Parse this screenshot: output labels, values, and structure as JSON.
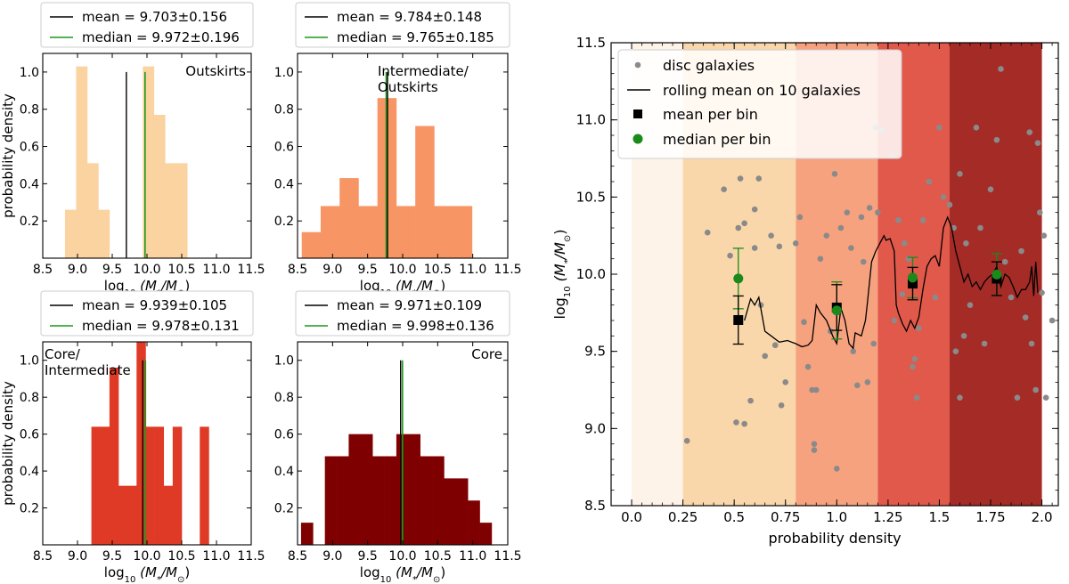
{
  "chart_data": [
    {
      "type": "histogram",
      "panel": "outskirts",
      "title": "Outskirts",
      "xlabel": "log$_{10}$ (M$_*$/M$_\\odot$)",
      "ylabel": "probability density",
      "xlim": [
        8.5,
        11.5
      ],
      "ylim": [
        0.0,
        1.1
      ],
      "xticks": [
        "8.5",
        "9.0",
        "9.5",
        "10.0",
        "10.5",
        "11.0",
        "11.5"
      ],
      "yticks": [
        "0.2",
        "0.4",
        "0.6",
        "0.8",
        "1.0"
      ],
      "color": "#fad3a0",
      "bin_edges": [
        8.82,
        8.98,
        9.14,
        9.3,
        9.46,
        9.62,
        9.78,
        9.94,
        10.1,
        10.26,
        10.42,
        10.58
      ],
      "values": [
        0.26,
        1.03,
        0.51,
        0.26,
        0.0,
        0.0,
        0.0,
        1.03,
        0.77,
        0.51,
        0.51
      ],
      "mean_value": 9.703,
      "median_value": 9.972,
      "mean_label": "mean = 9.703±0.156",
      "median_label": "median = 9.972±0.196"
    },
    {
      "type": "histogram",
      "panel": "intermediate-outskirts",
      "title": "Intermediate/\nOutskirts",
      "xlabel": "log$_{10}$ (M$_*$/M$_\\odot$)",
      "ylabel": "",
      "xlim": [
        8.5,
        11.5
      ],
      "ylim": [
        0.0,
        1.1
      ],
      "xticks": [
        "8.5",
        "9.0",
        "9.5",
        "10.0",
        "10.5",
        "11.0",
        "11.5"
      ],
      "yticks": [
        "0.2",
        "0.4",
        "0.6",
        "0.8",
        "1.0"
      ],
      "color": "#f89565",
      "bin_edges": [
        8.56,
        8.83,
        9.1,
        9.37,
        9.64,
        9.91,
        10.18,
        10.45,
        10.72,
        10.99
      ],
      "values": [
        0.14,
        0.28,
        0.43,
        0.28,
        0.86,
        0.28,
        0.71,
        0.28,
        0.28
      ],
      "mean_value": 9.784,
      "median_value": 9.765,
      "mean_label": "mean = 9.784±0.148",
      "median_label": "median = 9.765±0.185"
    },
    {
      "type": "histogram",
      "panel": "core-intermediate",
      "title": "Core/\nIntermediate",
      "xlabel": "log$_{10}$ (M$_*$/M$_\\odot$)",
      "ylabel": "probability density",
      "xlim": [
        8.5,
        11.5
      ],
      "ylim": [
        0.0,
        1.1
      ],
      "xticks": [
        "8.5",
        "9.0",
        "9.5",
        "10.0",
        "10.5",
        "11.0",
        "11.5"
      ],
      "yticks": [
        "0.2",
        "0.4",
        "0.6",
        "0.8",
        "1.0"
      ],
      "color": "#de3a25",
      "bin_edges": [
        9.2,
        9.33,
        9.46,
        9.59,
        9.72,
        9.85,
        9.98,
        10.11,
        10.24,
        10.37,
        10.5,
        10.63,
        10.76,
        10.89
      ],
      "values": [
        0.64,
        0.64,
        0.96,
        0.32,
        0.32,
        1.1,
        0.64,
        0.64,
        0.32,
        0.64,
        0.0,
        0.0,
        0.64
      ],
      "mean_value": 9.939,
      "median_value": 9.978,
      "mean_label": "mean = 9.939±0.105",
      "median_label": "median = 9.978±0.131"
    },
    {
      "type": "histogram",
      "panel": "core",
      "title": "Core",
      "xlabel": "log$_{10}$ (M$_*$/M$_\\odot$)",
      "ylabel": "",
      "xlim": [
        8.5,
        11.5
      ],
      "ylim": [
        0.0,
        1.1
      ],
      "xticks": [
        "8.5",
        "9.0",
        "9.5",
        "10.0",
        "10.5",
        "11.0",
        "11.5"
      ],
      "yticks": [
        "0.2",
        "0.4",
        "0.6",
        "0.8",
        "1.0"
      ],
      "color": "#7f0000",
      "bin_edges": [
        8.55,
        8.72,
        8.89,
        9.06,
        9.23,
        9.4,
        9.57,
        9.74,
        9.91,
        10.08,
        10.25,
        10.42,
        10.59,
        10.76,
        10.93,
        11.1,
        11.27
      ],
      "values": [
        0.12,
        0.0,
        0.48,
        0.48,
        0.6,
        0.6,
        0.48,
        0.48,
        0.6,
        0.6,
        0.48,
        0.48,
        0.36,
        0.36,
        0.24,
        0.12
      ],
      "mean_value": 9.971,
      "median_value": 9.998,
      "mean_label": "mean = 9.971±0.109",
      "median_label": "median = 9.998±0.136"
    },
    {
      "type": "scatter",
      "panel": "main",
      "xlabel": "probability density",
      "ylabel": "log$_{10}$ (M$_*$/M$_\\odot$)",
      "xlim": [
        -0.1,
        2.08
      ],
      "ylim": [
        8.5,
        11.5
      ],
      "xticks": [
        "0.0",
        "0.25",
        "0.5",
        "0.75",
        "1.0",
        "1.25",
        "1.5",
        "1.75",
        "2.0"
      ],
      "yticks": [
        "8.5",
        "9.0",
        "9.5",
        "10.0",
        "10.5",
        "11.0",
        "11.5"
      ],
      "bands": [
        {
          "x0": 0.0,
          "x1": 0.25,
          "color": "#fef3e8"
        },
        {
          "x0": 0.25,
          "x1": 0.8,
          "color": "#fad7aa"
        },
        {
          "x0": 0.8,
          "x1": 1.2,
          "color": "#f7a27f"
        },
        {
          "x0": 1.2,
          "x1": 1.55,
          "color": "#e0594a"
        },
        {
          "x0": 1.55,
          "x1": 2.0,
          "color": "#a52b27"
        }
      ],
      "legend": {
        "disc": "disc galaxies",
        "rolling": "rolling mean on 10 galaxies",
        "mean": "mean per bin",
        "median": "median per bin"
      },
      "scatter_points": [
        [
          0.27,
          8.92
        ],
        [
          0.37,
          10.27
        ],
        [
          0.45,
          10.55
        ],
        [
          0.48,
          10.12
        ],
        [
          0.51,
          9.04
        ],
        [
          0.52,
          10.3
        ],
        [
          0.53,
          10.62
        ],
        [
          0.55,
          10.33
        ],
        [
          0.55,
          9.03
        ],
        [
          0.58,
          9.18
        ],
        [
          0.6,
          10.42
        ],
        [
          0.6,
          10.17
        ],
        [
          0.62,
          10.62
        ],
        [
          0.63,
          9.8
        ],
        [
          0.65,
          9.47
        ],
        [
          0.68,
          10.25
        ],
        [
          0.7,
          9.54
        ],
        [
          0.72,
          10.18
        ],
        [
          0.73,
          9.15
        ],
        [
          0.75,
          9.3
        ],
        [
          0.8,
          10.2
        ],
        [
          0.82,
          10.37
        ],
        [
          0.84,
          9.69
        ],
        [
          0.86,
          9.4
        ],
        [
          0.88,
          9.25
        ],
        [
          0.89,
          8.9
        ],
        [
          0.89,
          8.86
        ],
        [
          0.9,
          9.25
        ],
        [
          0.92,
          10.1
        ],
        [
          0.95,
          10.25
        ],
        [
          0.97,
          9.63
        ],
        [
          0.99,
          10.65
        ],
        [
          1.0,
          8.74
        ],
        [
          1.02,
          10.3
        ],
        [
          1.05,
          10.4
        ],
        [
          1.07,
          10.17
        ],
        [
          1.08,
          9.5
        ],
        [
          1.1,
          9.28
        ],
        [
          1.12,
          10.37
        ],
        [
          1.13,
          10.08
        ],
        [
          1.15,
          9.3
        ],
        [
          1.16,
          10.43
        ],
        [
          1.18,
          9.55
        ],
        [
          1.19,
          10.95
        ],
        [
          1.2,
          10.4
        ],
        [
          1.22,
          10.93
        ],
        [
          1.27,
          10.77
        ],
        [
          1.28,
          9.7
        ],
        [
          1.3,
          10.35
        ],
        [
          1.32,
          9.87
        ],
        [
          1.33,
          10.2
        ],
        [
          1.35,
          10.1
        ],
        [
          1.37,
          9.4
        ],
        [
          1.38,
          9.45
        ],
        [
          1.39,
          9.2
        ],
        [
          1.4,
          9.65
        ],
        [
          1.42,
          10.35
        ],
        [
          1.45,
          10.6
        ],
        [
          1.48,
          9.85
        ],
        [
          1.5,
          10.95
        ],
        [
          1.52,
          10.5
        ],
        [
          1.55,
          10.45
        ],
        [
          1.57,
          10.3
        ],
        [
          1.58,
          9.5
        ],
        [
          1.6,
          10.65
        ],
        [
          1.6,
          9.2
        ],
        [
          1.62,
          9.6
        ],
        [
          1.63,
          10.2
        ],
        [
          1.65,
          9.8
        ],
        [
          1.68,
          10.95
        ],
        [
          1.7,
          10.3
        ],
        [
          1.72,
          9.55
        ],
        [
          1.75,
          10.55
        ],
        [
          1.78,
          10.87
        ],
        [
          1.8,
          11.33
        ],
        [
          1.82,
          10.08
        ],
        [
          1.85,
          9.85
        ],
        [
          1.88,
          9.2
        ],
        [
          1.9,
          10.15
        ],
        [
          1.92,
          9.72
        ],
        [
          1.94,
          10.92
        ],
        [
          1.95,
          9.55
        ],
        [
          1.97,
          9.25
        ],
        [
          1.98,
          10.85
        ],
        [
          1.99,
          10.4
        ],
        [
          2.0,
          9.88
        ],
        [
          2.01,
          10.25
        ],
        [
          2.02,
          9.2
        ],
        [
          2.05,
          9.7
        ]
      ],
      "rolling_mean": [
        [
          0.55,
          9.7
        ],
        [
          0.58,
          9.84
        ],
        [
          0.6,
          9.8
        ],
        [
          0.62,
          9.85
        ],
        [
          0.65,
          9.63
        ],
        [
          0.68,
          9.6
        ],
        [
          0.72,
          9.56
        ],
        [
          0.76,
          9.57
        ],
        [
          0.8,
          9.55
        ],
        [
          0.83,
          9.53
        ],
        [
          0.86,
          9.54
        ],
        [
          0.88,
          9.57
        ],
        [
          0.9,
          9.8
        ],
        [
          0.92,
          9.75
        ],
        [
          0.95,
          9.7
        ],
        [
          0.98,
          9.6
        ],
        [
          1.0,
          9.55
        ],
        [
          1.02,
          9.78
        ],
        [
          1.04,
          9.7
        ],
        [
          1.06,
          9.55
        ],
        [
          1.08,
          9.52
        ],
        [
          1.09,
          9.62
        ],
        [
          1.12,
          9.6
        ],
        [
          1.14,
          9.7
        ],
        [
          1.15,
          9.82
        ],
        [
          1.17,
          10.08
        ],
        [
          1.19,
          10.15
        ],
        [
          1.21,
          10.2
        ],
        [
          1.23,
          10.25
        ],
        [
          1.24,
          10.22
        ],
        [
          1.26,
          10.23
        ],
        [
          1.28,
          10.15
        ],
        [
          1.29,
          9.8
        ],
        [
          1.3,
          9.75
        ],
        [
          1.32,
          9.68
        ],
        [
          1.34,
          9.63
        ],
        [
          1.36,
          9.7
        ],
        [
          1.38,
          9.65
        ],
        [
          1.4,
          9.72
        ],
        [
          1.42,
          9.9
        ],
        [
          1.44,
          10.05
        ],
        [
          1.46,
          10.1
        ],
        [
          1.48,
          10.12
        ],
        [
          1.5,
          10.05
        ],
        [
          1.52,
          10.3
        ],
        [
          1.54,
          10.37
        ],
        [
          1.56,
          10.3
        ],
        [
          1.58,
          10.15
        ],
        [
          1.6,
          10.05
        ],
        [
          1.62,
          9.95
        ],
        [
          1.64,
          10.0
        ],
        [
          1.66,
          9.92
        ],
        [
          1.68,
          9.95
        ],
        [
          1.7,
          9.9
        ],
        [
          1.72,
          9.95
        ],
        [
          1.74,
          9.98
        ],
        [
          1.76,
          10.0
        ],
        [
          1.78,
          10.05
        ],
        [
          1.8,
          9.92
        ],
        [
          1.82,
          10.0
        ],
        [
          1.84,
          9.98
        ],
        [
          1.86,
          9.92
        ],
        [
          1.88,
          9.85
        ],
        [
          1.9,
          9.9
        ],
        [
          1.92,
          9.9
        ],
        [
          1.94,
          9.95
        ],
        [
          1.95,
          10.05
        ],
        [
          1.96,
          9.86
        ],
        [
          1.97,
          10.08
        ],
        [
          1.98,
          9.88
        ]
      ],
      "bin_stats": [
        {
          "x": 0.52,
          "mean": 9.703,
          "mean_err": 0.156,
          "median": 9.972,
          "median_err": 0.196
        },
        {
          "x": 1.0,
          "mean": 9.784,
          "mean_err": 0.148,
          "median": 9.765,
          "median_err": 0.185
        },
        {
          "x": 1.37,
          "mean": 9.939,
          "mean_err": 0.105,
          "median": 9.978,
          "median_err": 0.131
        },
        {
          "x": 1.78,
          "mean": 9.971,
          "mean_err": 0.109,
          "median": 9.998,
          "median_err": 0.136
        }
      ]
    }
  ]
}
